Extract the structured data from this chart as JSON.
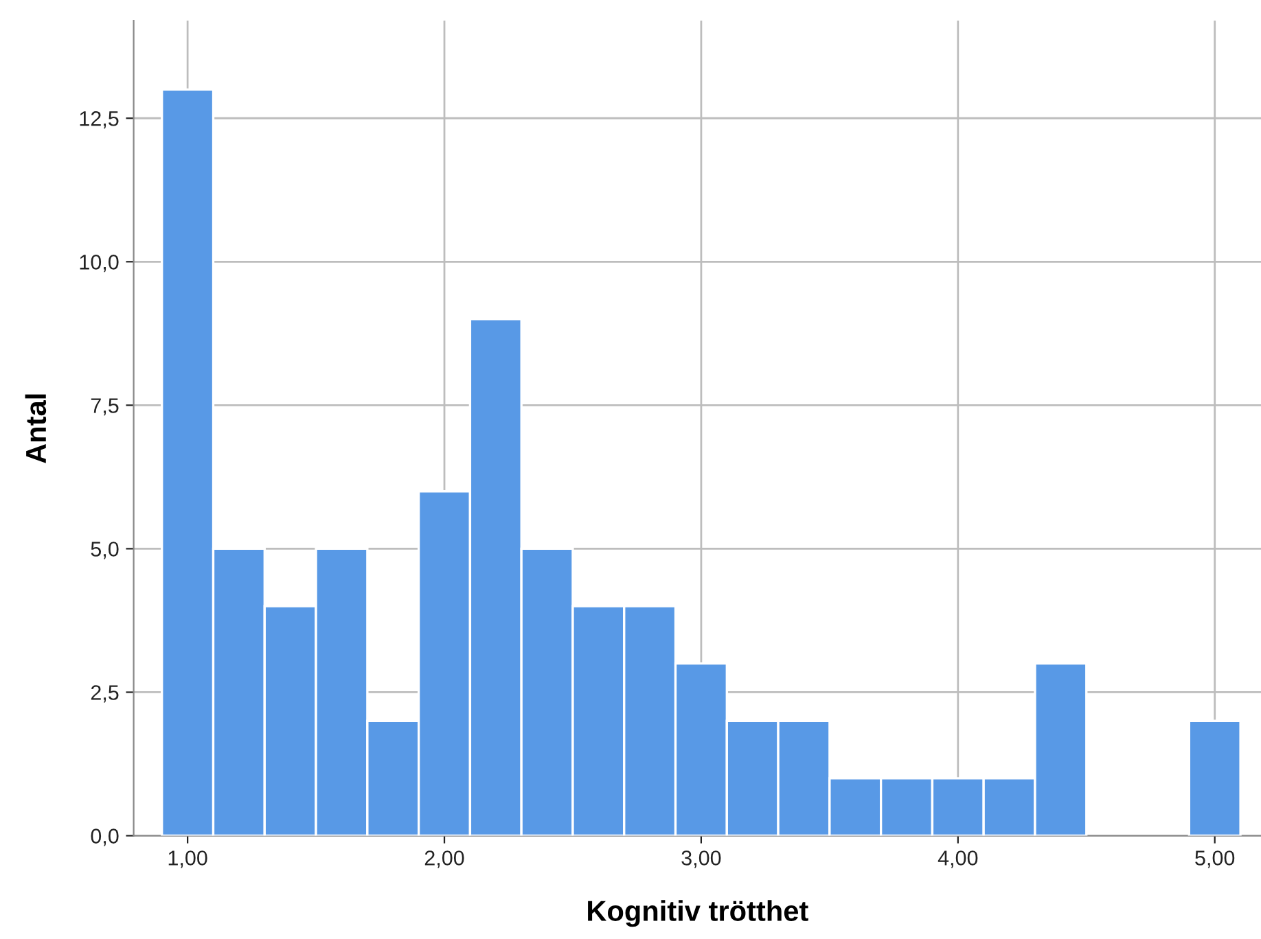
{
  "chart_data": {
    "type": "histogram",
    "xlabel": "Kognitiv trötthet",
    "ylabel": "Antal",
    "bins": [
      0.9,
      1.1,
      1.3,
      1.5,
      1.7,
      1.9,
      2.1,
      2.3,
      2.5,
      2.7,
      2.9,
      3.1,
      3.3,
      3.5,
      3.7,
      3.9,
      4.1,
      4.3,
      4.5,
      4.7,
      4.9,
      5.1
    ],
    "values": [
      13,
      5,
      4,
      5,
      2,
      6,
      9,
      5,
      4,
      4,
      3,
      2,
      2,
      1,
      1,
      1,
      1,
      3,
      0,
      0,
      2
    ],
    "color": "#5899e6",
    "xlim": [
      0.79,
      5.18
    ],
    "ylim": [
      0,
      14.2
    ],
    "xticks": [
      {
        "value": 1,
        "label": "1,00"
      },
      {
        "value": 2,
        "label": "2,00"
      },
      {
        "value": 3,
        "label": "3,00"
      },
      {
        "value": 4,
        "label": "4,00"
      },
      {
        "value": 5,
        "label": "5,00"
      }
    ],
    "yticks": [
      {
        "value": 0,
        "label": "0,0"
      },
      {
        "value": 2.5,
        "label": "2,5"
      },
      {
        "value": 5,
        "label": "5,0"
      },
      {
        "value": 7.5,
        "label": "7,5"
      },
      {
        "value": 10,
        "label": "10,0"
      },
      {
        "value": 12.5,
        "label": "12,5"
      }
    ],
    "grid": true
  }
}
